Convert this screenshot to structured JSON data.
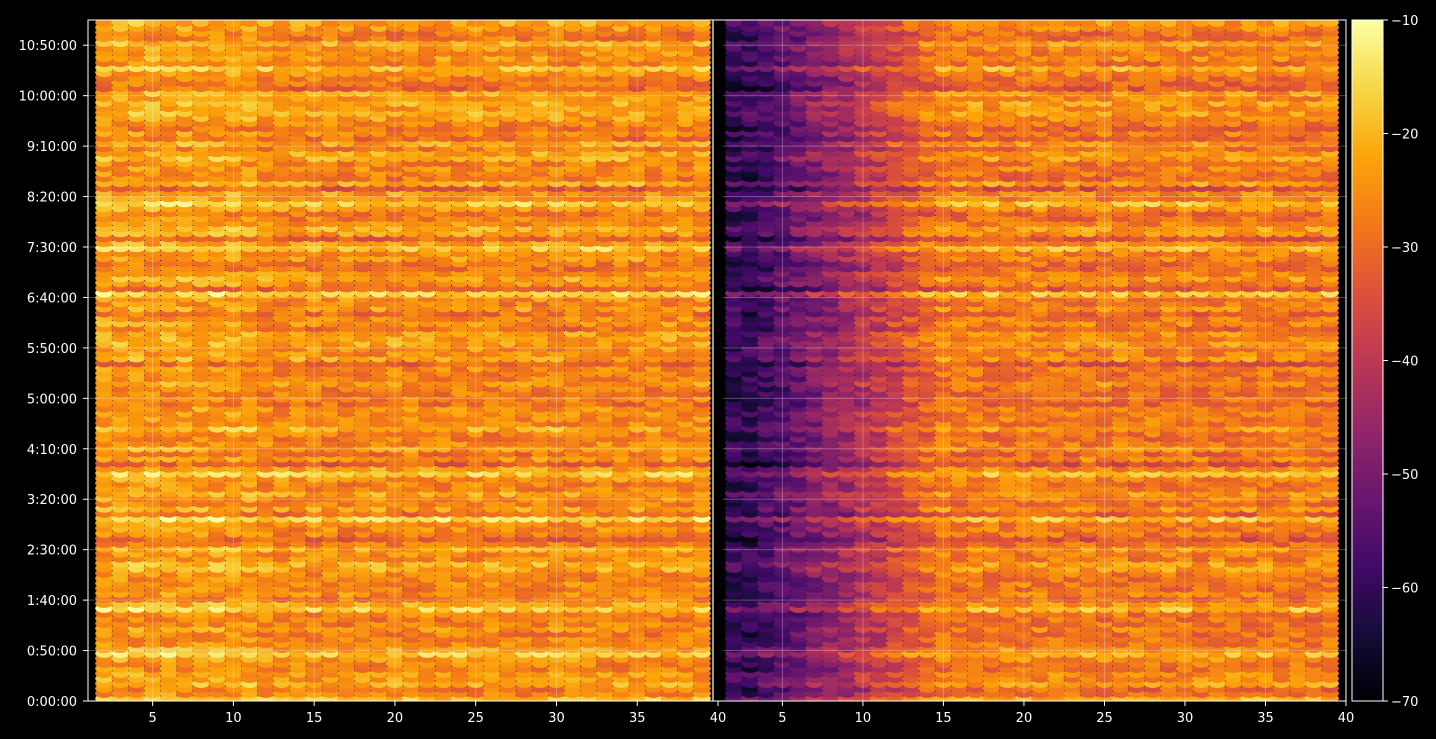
{
  "chart_data": {
    "type": "heatmap",
    "title": "",
    "xlabel": "",
    "ylabel": "",
    "colormap": "inferno",
    "background": "#000000",
    "grid": true,
    "grid_color": "#ffffff",
    "panels": [
      {
        "name": "",
        "x_range": [
          1.5,
          39.5
        ],
        "x_ticks": [
          5,
          10,
          15,
          20,
          25,
          30,
          35
        ],
        "x_tick_labels": [
          "5",
          "10",
          "15",
          "20",
          "25",
          "30",
          "35"
        ],
        "typical_value_range": [
          -32,
          -18
        ],
        "brightest_rows": [
          "10:50:00",
          "7:30:00",
          "6:40:00",
          "3:50:00",
          "2:50:00",
          "1:10:00"
        ]
      },
      {
        "name": "",
        "x_range": [
          1.5,
          39.5
        ],
        "x_ticks": [
          5,
          10,
          15,
          20,
          25,
          30,
          35
        ],
        "x_tick_labels": [
          "5",
          "10",
          "15",
          "20",
          "25",
          "30",
          "35"
        ],
        "left_region_value_range": [
          -68,
          -50
        ],
        "right_region_value_range": [
          -34,
          -20
        ],
        "brightest_rows": [
          "10:50:00",
          "1:10:00"
        ]
      }
    ],
    "boundary_tick_labels": [
      "40",
      "40"
    ],
    "y_ticks": [
      "0:00:00",
      "0:50:00",
      "1:40:00",
      "2:30:00",
      "3:20:00",
      "4:10:00",
      "5:00:00",
      "5:50:00",
      "6:40:00",
      "7:30:00",
      "8:20:00",
      "9:10:00",
      "10:00:00",
      "10:50:00"
    ],
    "y_range_minutes": [
      0,
      675
    ],
    "colorbar": {
      "min": -70,
      "max": -10,
      "ticks": [
        -10,
        -20,
        -30,
        -40,
        -50,
        -60,
        -70
      ],
      "tick_labels": [
        "−10",
        "−20",
        "−30",
        "−40",
        "−50",
        "−60",
        "−70"
      ]
    }
  }
}
